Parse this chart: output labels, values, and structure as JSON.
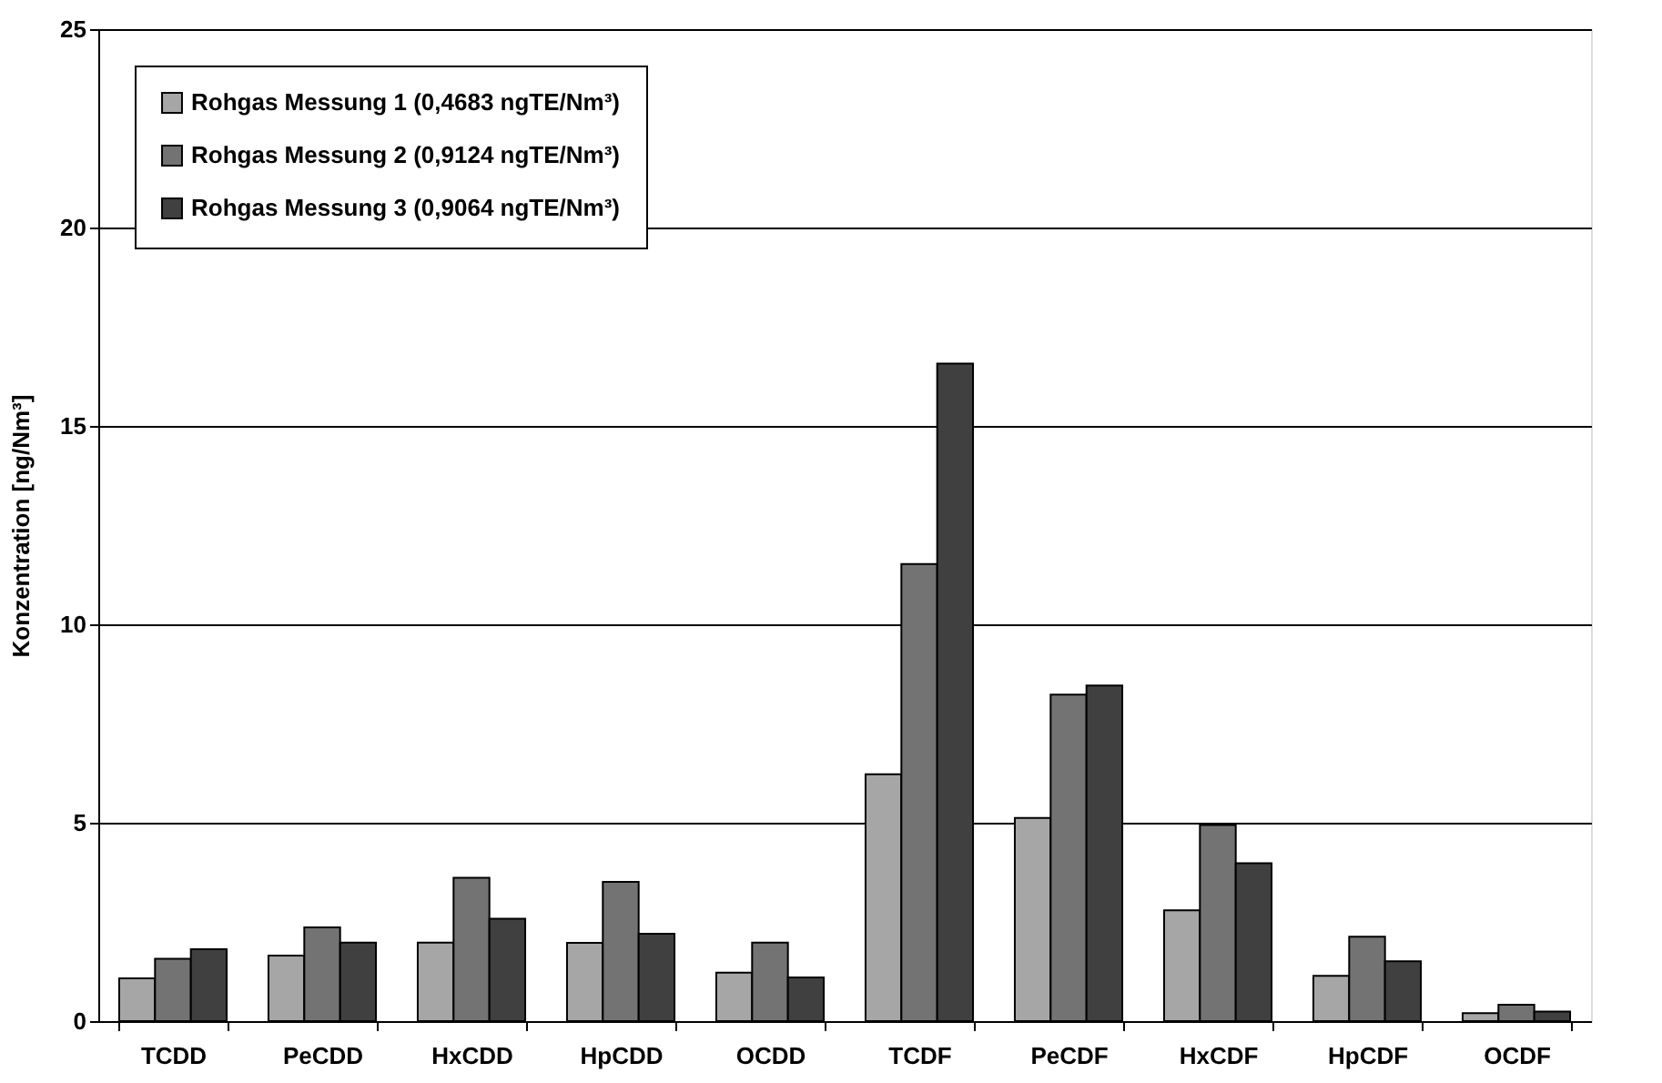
{
  "chart_data": {
    "type": "bar",
    "ylabel": "Konzentration [ng/Nm³]",
    "categories": [
      "TCDD",
      "PeCDD",
      "HxCDD",
      "HpCDD",
      "OCDD",
      "TCDF",
      "PeCDF",
      "HxCDF",
      "HpCDF",
      "OCDF"
    ],
    "series": [
      {
        "name": "Rohgas Messung 1 (0,4683 ngTE/Nm³)",
        "color": "#a6a6a6",
        "values": [
          1.08,
          1.65,
          1.98,
          1.97,
          1.22,
          6.22,
          5.12,
          2.79,
          1.14,
          0.2
        ]
      },
      {
        "name": "Rohgas Messung 2 (0,9124 ngTE/Nm³)",
        "color": "#737373",
        "values": [
          1.57,
          2.36,
          3.61,
          3.51,
          1.98,
          11.52,
          8.23,
          4.94,
          2.13,
          0.41
        ]
      },
      {
        "name": "Rohgas Messung 3 (0,9064 ngTE/Nm³)",
        "color": "#404040",
        "values": [
          1.81,
          1.98,
          2.58,
          2.2,
          1.1,
          16.57,
          8.46,
          3.98,
          1.51,
          0.24
        ]
      }
    ],
    "ylim": [
      0,
      25
    ],
    "yticks": [
      0,
      5,
      10,
      15,
      20,
      25
    ],
    "grid": "y",
    "legend": "top left"
  }
}
